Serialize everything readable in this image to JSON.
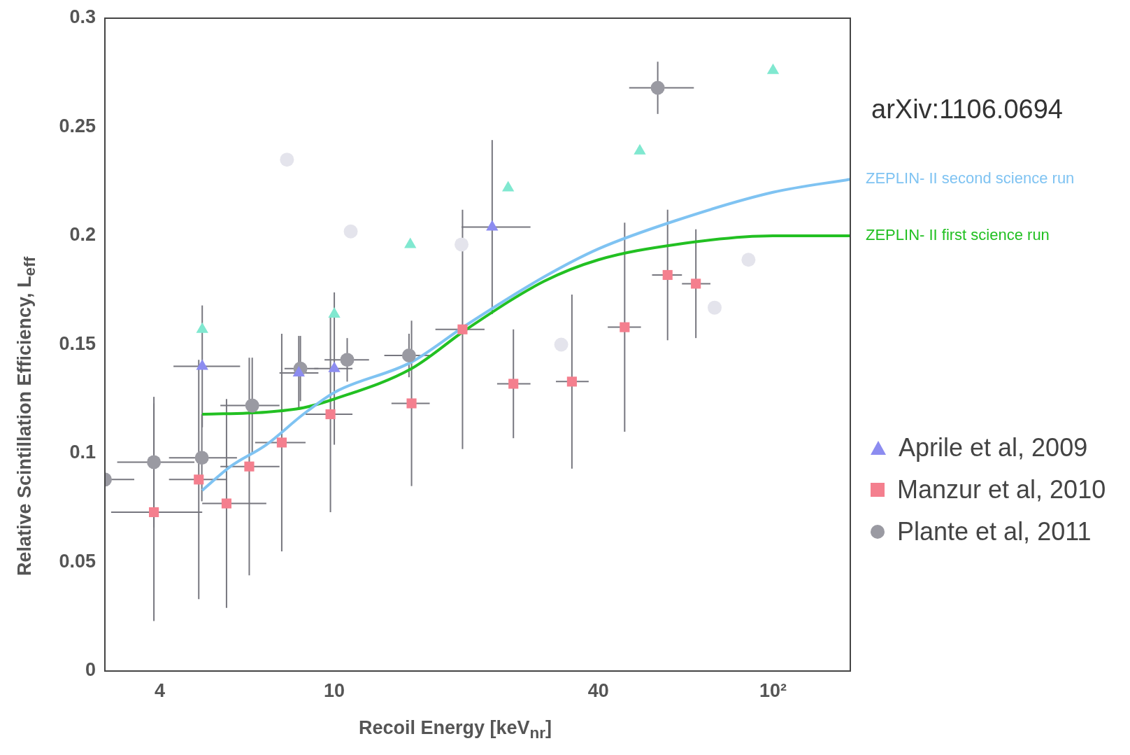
{
  "chart_data": {
    "type": "scatter",
    "xlabel": "Recoil Energy [keV$_{nr}$]",
    "ylabel": "Relative Scintillation Efficiency, L$_{eff}$",
    "log": "x",
    "xlim": [
      3,
      150
    ],
    "xticks": [
      4,
      10,
      40,
      {
        "value": 100,
        "label": "10²"
      }
    ],
    "ylim": [
      0,
      0.3
    ],
    "yticks": [
      0,
      0.05,
      0.1,
      0.15,
      0.2,
      0.25,
      0.3
    ],
    "grid": false,
    "legend": "right",
    "annotations": [
      "arXiv:1106.0694"
    ],
    "series": [
      {
        "name": "ZEPLIN- II second science run",
        "type": "line",
        "color": "#7fc3f2",
        "marker": "none",
        "x": [
          5,
          5.8,
          7,
          8.5,
          10,
          15,
          20,
          30,
          40,
          60,
          100,
          150
        ],
        "values": [
          0.083,
          0.094,
          0.104,
          0.118,
          0.128,
          0.142,
          0.159,
          0.181,
          0.194,
          0.207,
          0.22,
          0.226
        ]
      },
      {
        "name": "ZEPLIN- II first science run",
        "type": "line",
        "color": "#22c022",
        "marker": "none",
        "x": [
          5,
          7,
          8.5,
          10,
          15,
          20,
          30,
          40,
          60,
          100,
          150
        ],
        "values": [
          0.118,
          0.119,
          0.121,
          0.125,
          0.139,
          0.157,
          0.179,
          0.189,
          0.196,
          0.2,
          0.2
        ]
      },
      {
        "color": "#e4e4ec",
        "marker": "circle",
        "x": [
          7.8,
          10.9,
          19.5,
          32.9,
          73.6,
          87.9
        ],
        "values": [
          0.235,
          0.202,
          0.196,
          0.15,
          0.167,
          0.189
        ]
      },
      {
        "color": "#80e8d0",
        "marker": "triangle",
        "x": [
          5,
          10,
          14.9,
          24.9,
          49.7,
          100
        ],
        "values": [
          0.157,
          0.164,
          0.196,
          0.222,
          0.239,
          0.276
        ]
      },
      {
        "name": "Aprile et al, 2009",
        "color": "#8c8cf0",
        "marker": "triangle",
        "x": [
          5,
          8.3,
          10,
          22.9
        ],
        "values": [
          0.14,
          0.137,
          0.139,
          0.204
        ],
        "errors": [
          0.028,
          0.017,
          0.035,
          0.04
        ],
        "xerrors": [
          [
            4.3,
            6.1
          ],
          [
            7.5,
            9.2
          ],
          [
            9,
            11
          ],
          [
            19.5,
            28
          ]
        ]
      },
      {
        "name": "Manzur et al, 2010",
        "color": "#f47f8e",
        "marker": "square",
        "x": [
          3.88,
          4.91,
          5.68,
          6.4,
          7.59,
          9.8,
          15,
          19.6,
          25.6,
          34.8,
          45.9,
          57.5,
          66.7
        ],
        "values": [
          0.073,
          0.088,
          0.077,
          0.094,
          0.105,
          0.118,
          0.123,
          0.157,
          0.132,
          0.133,
          0.158,
          0.182,
          0.178
        ],
        "errors": [
          0.05,
          0.055,
          0.048,
          0.05,
          0.05,
          0.045,
          0.038,
          0.055,
          0.025,
          0.04,
          0.048,
          0.03,
          0.025
        ],
        "xerrors": [
          [
            3.1,
            5
          ],
          [
            4.2,
            5.7
          ],
          [
            5,
            7
          ],
          [
            5.5,
            7.5
          ],
          [
            6.6,
            8.6
          ],
          [
            8.6,
            11
          ],
          [
            13.5,
            16.5
          ],
          [
            17,
            22
          ],
          [
            23.5,
            28
          ],
          [
            32,
            38
          ],
          [
            42,
            50
          ],
          [
            53,
            62
          ],
          [
            62,
            72
          ]
        ]
      },
      {
        "name": "Plante et al, 2011",
        "color": "#9a9aa2",
        "marker": "circle",
        "x": [
          3,
          3.88,
          4.99,
          6.5,
          8.37,
          10.7,
          14.8,
          54.6
        ],
        "values": [
          0.088,
          0.096,
          0.098,
          0.122,
          0.139,
          0.143,
          0.145,
          0.268
        ],
        "errors": [
          0.01,
          0.03,
          0.02,
          0.022,
          0.015,
          0.01,
          0.01,
          0.012
        ],
        "xerrors": [
          [
            3,
            3.5
          ],
          [
            3.2,
            4.8
          ],
          [
            4.2,
            6
          ],
          [
            5.5,
            7.5
          ],
          [
            7.7,
            9.2
          ],
          [
            9.5,
            12
          ],
          [
            13,
            16.5
          ],
          [
            47,
            66
          ]
        ]
      }
    ]
  }
}
